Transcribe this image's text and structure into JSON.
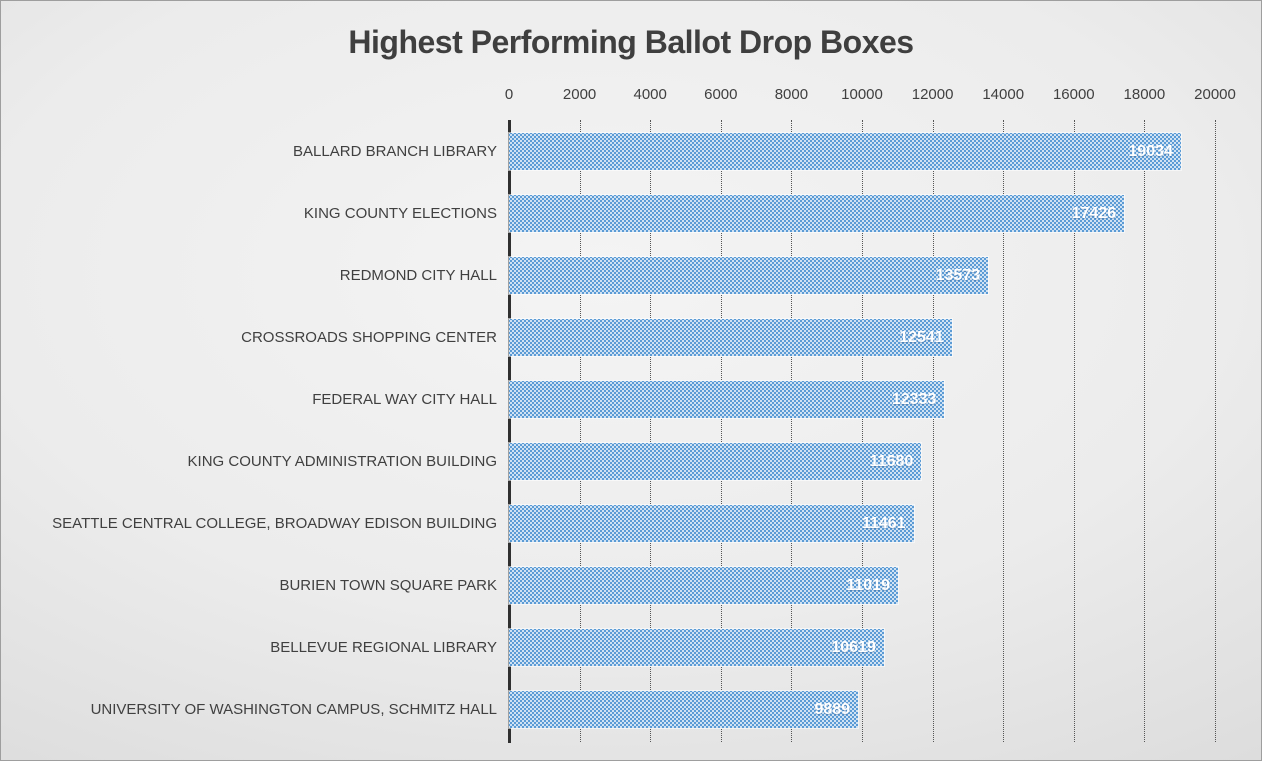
{
  "chart_data": {
    "type": "bar",
    "orientation": "horizontal",
    "title": "Highest Performing Ballot Drop Boxes",
    "categories": [
      "BALLARD BRANCH LIBRARY",
      "KING COUNTY ELECTIONS",
      "REDMOND CITY HALL",
      "CROSSROADS SHOPPING CENTER",
      "FEDERAL WAY CITY HALL",
      "KING COUNTY ADMINISTRATION BUILDING",
      "SEATTLE CENTRAL COLLEGE, BROADWAY EDISON BUILDING",
      "BURIEN TOWN SQUARE PARK",
      "BELLEVUE REGIONAL LIBRARY",
      "UNIVERSITY OF WASHINGTON CAMPUS, SCHMITZ HALL"
    ],
    "values": [
      19034,
      17426,
      13573,
      12541,
      12333,
      11680,
      11461,
      11019,
      10619,
      9889
    ],
    "xlabel": "",
    "ylabel": "",
    "xlim": [
      0,
      20000
    ],
    "x_ticks": [
      0,
      2000,
      4000,
      6000,
      8000,
      10000,
      12000,
      14000,
      16000,
      18000,
      20000
    ],
    "x_axis_position": "top",
    "grid": "vertical-dotted",
    "legend": "none",
    "data_labels": "inside-end",
    "colors": {
      "bar_fill": "#5b9bd5",
      "bar_pattern_dot": "#ffffff",
      "data_label_text": "#ffffff",
      "axis_text": "#404040",
      "title_text": "#3f3f3f",
      "gridline": "#555555",
      "axis_line": "#303030",
      "background_light": "#f4f4f4",
      "background_dark": "#c0c0c0"
    }
  }
}
